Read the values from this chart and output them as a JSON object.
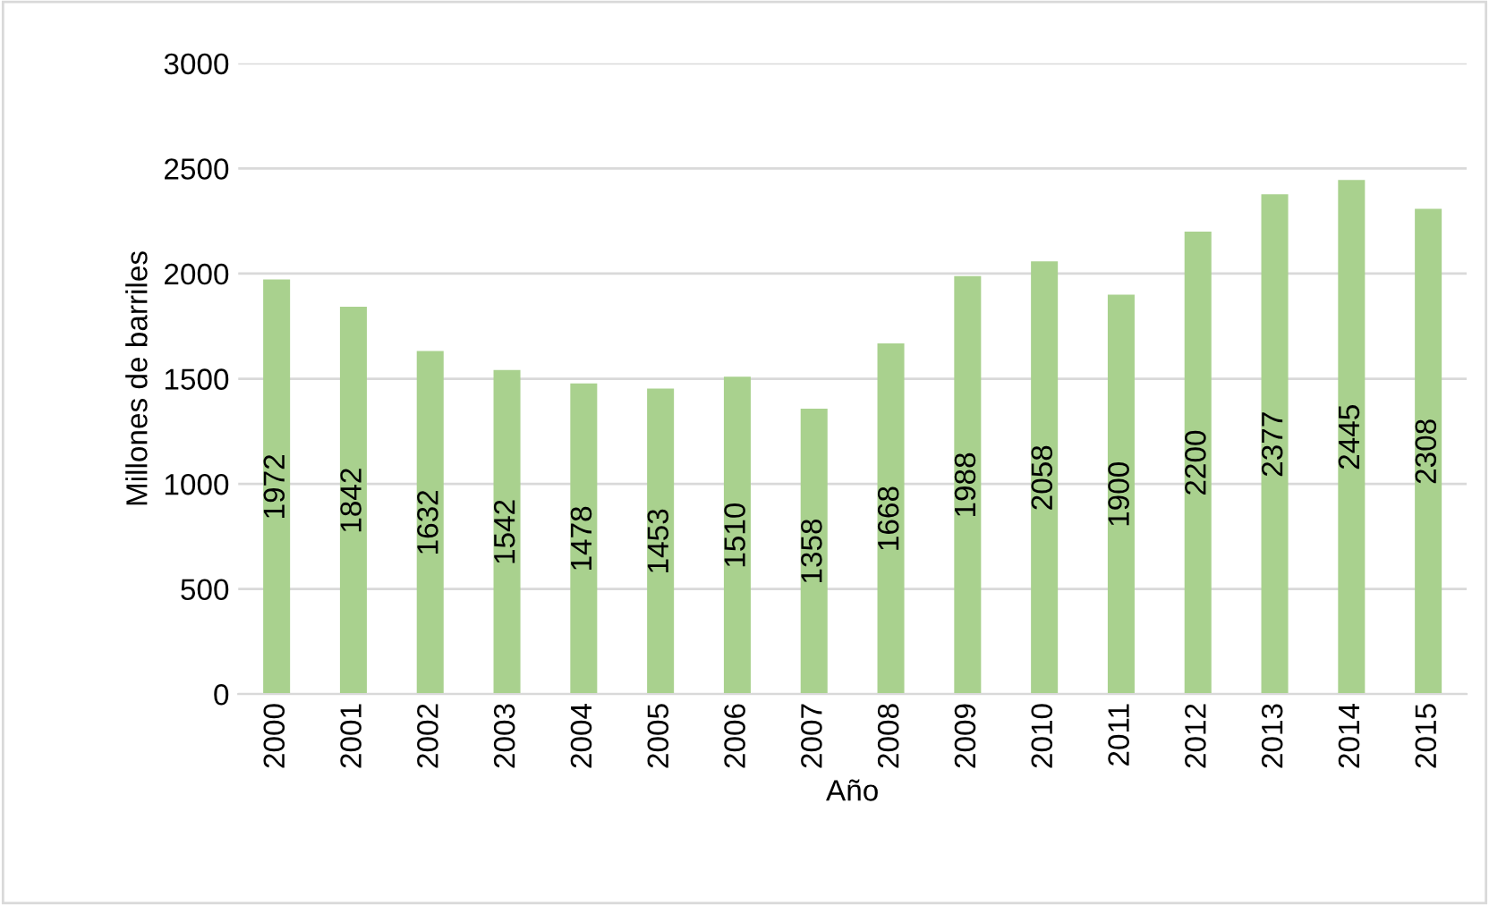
{
  "chart_data": {
    "type": "bar",
    "xlabel": "Año",
    "ylabel": "Millones de barriles",
    "categories": [
      "2000",
      "2001",
      "2002",
      "2003",
      "2004",
      "2005",
      "2006",
      "2007",
      "2008",
      "2009",
      "2010",
      "2011",
      "2012",
      "2013",
      "2014",
      "2015"
    ],
    "values": [
      1972,
      1842,
      1632,
      1542,
      1478,
      1453,
      1510,
      1358,
      1668,
      1988,
      2058,
      1900,
      2200,
      2377,
      2445,
      2308
    ],
    "color": "#a9d18e",
    "ylim": [
      0,
      3000
    ],
    "yticks": [
      0,
      500,
      1000,
      1500,
      2000,
      2500,
      3000
    ],
    "grid": "y",
    "data_labels": true
  }
}
